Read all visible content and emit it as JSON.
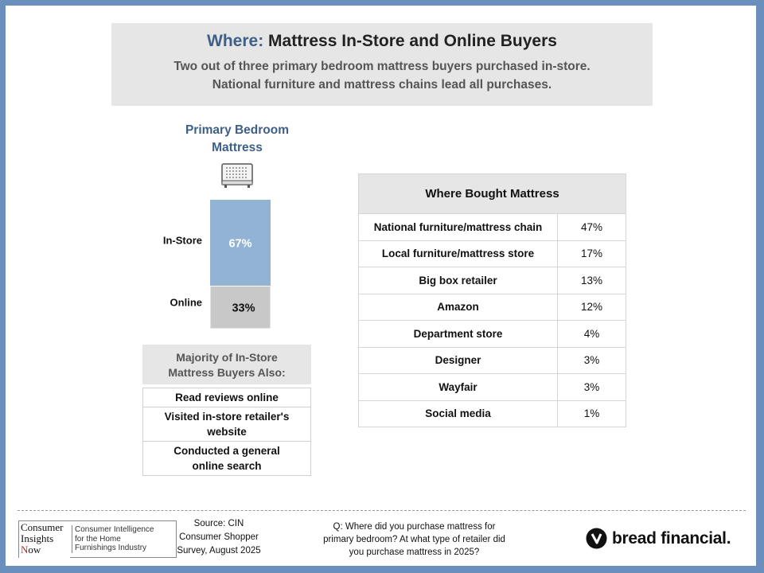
{
  "header": {
    "title_prefix": "Where:",
    "title_main": "Mattress In-Store and Online Buyers",
    "subtitle_line1": "Two out of three primary bedroom mattress buyers purchased in-store.",
    "subtitle_line2": "National furniture and mattress chains lead all purchases."
  },
  "chart_data": [
    {
      "type": "bar",
      "stacked": true,
      "title_line1": "Primary Bedroom",
      "title_line2": "Mattress",
      "series": [
        {
          "name": "In-Store",
          "values": [
            67
          ],
          "label": "67%",
          "color": "#93b3d4"
        },
        {
          "name": "Online",
          "values": [
            33
          ],
          "label": "33%",
          "color": "#c8c8c8"
        }
      ],
      "ylim": [
        0,
        100
      ]
    },
    {
      "type": "table",
      "title": "Where Bought Mattress",
      "rows": [
        {
          "label": "National furniture/mattress chain",
          "value": "47%"
        },
        {
          "label": "Local furniture/mattress store",
          "value": "17%"
        },
        {
          "label": "Big box retailer",
          "value": "13%"
        },
        {
          "label": "Amazon",
          "value": "12%"
        },
        {
          "label": "Department store",
          "value": "4%"
        },
        {
          "label": "Designer",
          "value": "3%"
        },
        {
          "label": "Wayfair",
          "value": "3%"
        },
        {
          "label": "Social media",
          "value": "1%"
        }
      ]
    }
  ],
  "also": {
    "header_line1": "Majority of In-Store",
    "header_line2": "Mattress Buyers Also:",
    "items": [
      {
        "line1": "Read reviews online",
        "line2": ""
      },
      {
        "line1": "Visited in-store retailer's",
        "line2": "website"
      },
      {
        "line1": "Conducted a general",
        "line2": "online search"
      }
    ]
  },
  "footer": {
    "cin_logo": {
      "line1": "Consumer",
      "line2": "Insights",
      "line3_first": "N",
      "line3_rest": "ow",
      "tag1": "Consumer Intelligence",
      "tag2": "for the Home",
      "tag3": "Furnishings Industry"
    },
    "source_line1": "Source: CIN",
    "source_line2": "Consumer Shopper",
    "source_line3": "Survey, August 2025",
    "question_line1": "Q: Where did you purchase mattress for",
    "question_line2": "primary bedroom? At what type of retailer did",
    "question_line3": "you purchase mattress in 2025?",
    "brand": "bread financial."
  },
  "icons": {
    "mattress": "mattress-icon",
    "bread_logo": "bread-financial-logo-icon"
  },
  "colors": {
    "accent": "#3e5f86",
    "in_store": "#93b3d4",
    "online": "#c8c8c8",
    "frame": "#6b8fbd"
  }
}
